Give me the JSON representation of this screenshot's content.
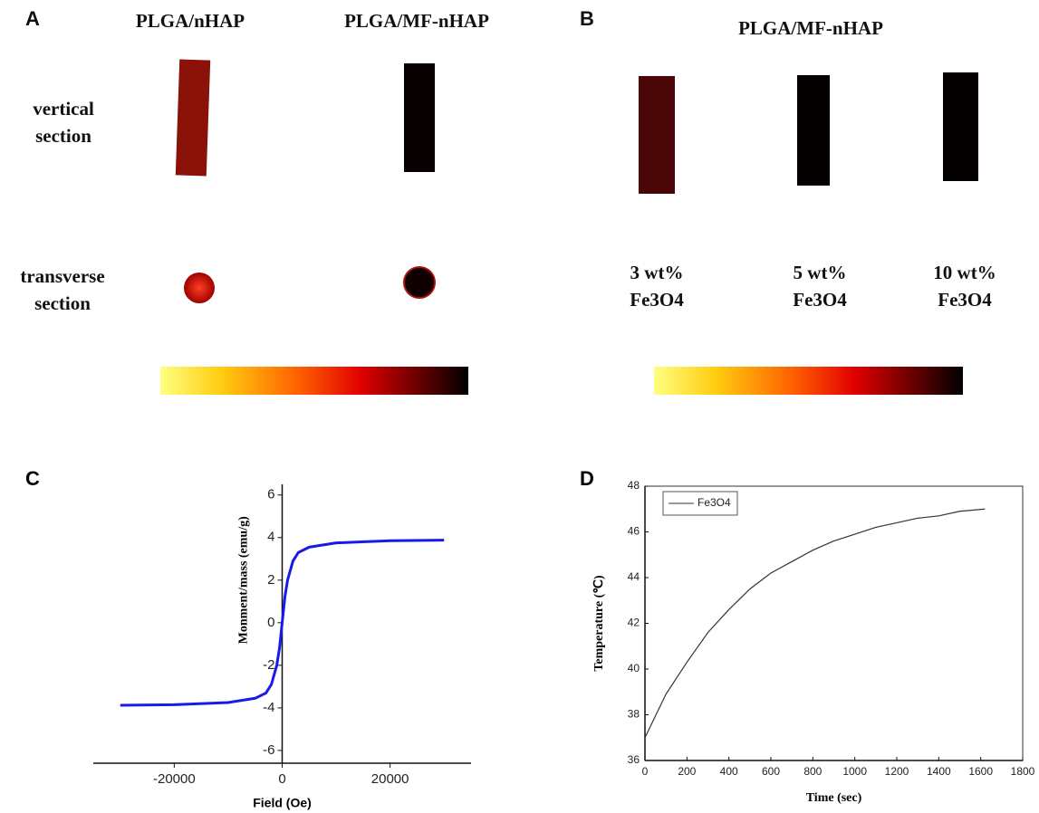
{
  "panels": {
    "a": {
      "label": "A",
      "columns": [
        "PLGA/nHAP",
        "PLGA/MF-nHAP"
      ],
      "rows": [
        "vertical section",
        "transverse section"
      ]
    },
    "b": {
      "label": "B",
      "title": "PLGA/MF-nHAP",
      "samples": [
        "3 wt% Fe3O4",
        "5 wt% Fe3O4",
        "10 wt% Fe3O4"
      ]
    }
  },
  "chart_data": [
    {
      "type": "line",
      "panel_label": "C",
      "x_label": "Field (Oe)",
      "y_label": "Monment/mass (emu/g)",
      "x": [
        -30000,
        -20000,
        -10000,
        -5000,
        -3000,
        -2000,
        -1000,
        -500,
        0,
        500,
        1000,
        2000,
        3000,
        5000,
        10000,
        20000,
        30000
      ],
      "series": [
        {
          "color": "#1a1ae8",
          "values": [
            -3.88,
            -3.85,
            -3.75,
            -3.55,
            -3.3,
            -2.9,
            -2.0,
            -1.2,
            0,
            1.2,
            2.0,
            2.9,
            3.3,
            3.55,
            3.75,
            3.85,
            3.88
          ]
        }
      ],
      "xlim": [
        -35000,
        35000
      ],
      "ylim": [
        -6.6,
        6.5
      ],
      "xticks": [
        -20000,
        0,
        20000
      ],
      "yticks": [
        -6,
        -4,
        -2,
        0,
        2,
        4,
        6
      ],
      "axes_cross_at_zero": true
    },
    {
      "type": "line",
      "panel_label": "D",
      "x_label": "Time (sec)",
      "y_label": "Temperature (℃)",
      "x": [
        0,
        100,
        200,
        300,
        400,
        500,
        600,
        700,
        800,
        900,
        1000,
        1100,
        1200,
        1300,
        1400,
        1500,
        1620
      ],
      "series": [
        {
          "name": "Fe3O4",
          "color": "#333333",
          "values": [
            37.0,
            38.9,
            40.3,
            41.6,
            42.6,
            43.5,
            44.2,
            44.7,
            45.2,
            45.6,
            45.9,
            46.2,
            46.4,
            46.6,
            46.7,
            46.9,
            47.0
          ]
        }
      ],
      "xlim": [
        0,
        1800
      ],
      "ylim": [
        36,
        48
      ],
      "xticks": [
        0,
        200,
        400,
        600,
        800,
        1000,
        1200,
        1400,
        1600,
        1800
      ],
      "yticks": [
        36,
        38,
        40,
        42,
        44,
        46,
        48
      ],
      "legend": "upper left",
      "frame": true
    }
  ]
}
